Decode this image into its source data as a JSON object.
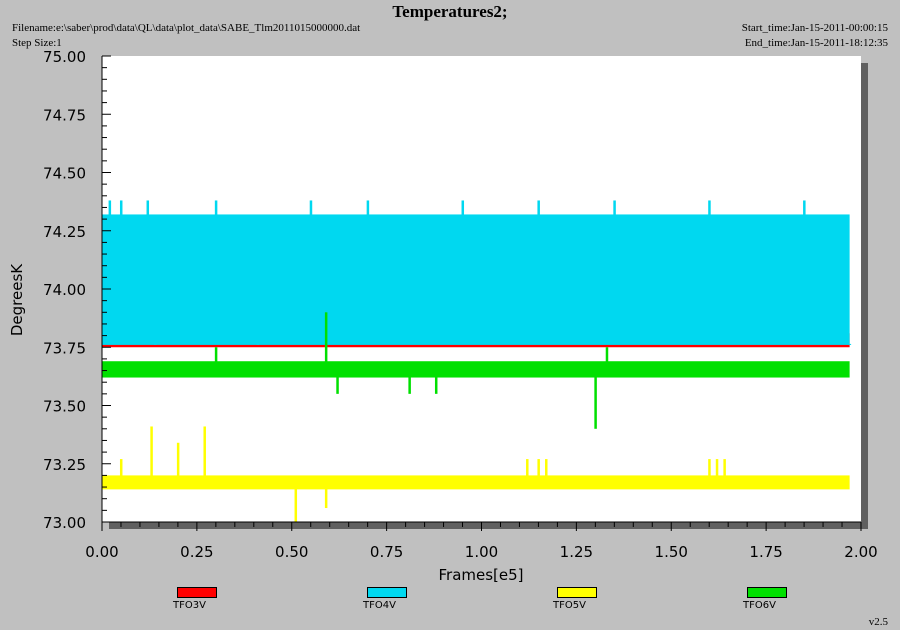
{
  "title": "Temperatures2;",
  "filename_text": "Filename:e:\\saber\\prod\\data\\QL\\data\\plot_data\\SABE_Tlm2011015000000.dat",
  "step_size_text": "Step Size:1",
  "start_time_text": "Start_time:Jan-15-2011-00:00:15",
  "end_time_text": "End_time:Jan-15-2011-18:12:35",
  "version": "v2.5",
  "chart_data": {
    "type": "line",
    "xlabel": "Frames[e5]",
    "ylabel": "DegreesK",
    "xlim": [
      0.0,
      2.0
    ],
    "ylim": [
      73.0,
      75.0
    ],
    "x_ticks": [
      "0.00",
      "0.25",
      "0.50",
      "0.75",
      "1.00",
      "1.25",
      "1.50",
      "1.75",
      "2.00"
    ],
    "y_ticks": [
      "73.00",
      "73.25",
      "73.50",
      "73.75",
      "74.00",
      "74.25",
      "74.50",
      "74.75",
      "75.00"
    ],
    "legend_position": "bottom",
    "series": [
      {
        "name": "TFO3V",
        "color": "#ff0000",
        "x_range": [
          0.0,
          1.97
        ],
        "band": [
          73.75,
          73.81
        ],
        "spikes_up": [
          [
            0.02,
            73.82
          ],
          [
            0.07,
            73.82
          ],
          [
            0.28,
            73.82
          ],
          [
            0.5,
            73.8
          ],
          [
            0.55,
            73.82
          ],
          [
            0.63,
            73.82
          ],
          [
            0.66,
            73.82
          ],
          [
            0.88,
            73.82
          ],
          [
            0.92,
            73.82
          ],
          [
            1.16,
            73.82
          ],
          [
            1.17,
            73.82
          ],
          [
            1.46,
            73.82
          ],
          [
            1.48,
            73.82
          ],
          [
            1.6,
            73.82
          ]
        ]
      },
      {
        "name": "TFO4V",
        "color": "#00d8f0",
        "x_range": [
          0.0,
          1.97
        ],
        "band": [
          73.76,
          74.32
        ],
        "spikes_up": [
          [
            0.02,
            74.38
          ],
          [
            0.05,
            74.38
          ],
          [
            0.12,
            74.38
          ],
          [
            0.3,
            74.38
          ],
          [
            0.55,
            74.38
          ],
          [
            0.7,
            74.38
          ],
          [
            0.95,
            74.38
          ],
          [
            1.15,
            74.38
          ],
          [
            1.35,
            74.38
          ],
          [
            1.6,
            74.38
          ],
          [
            1.85,
            74.38
          ]
        ],
        "spikes_down": [
          [
            0.14,
            74.18
          ],
          [
            0.41,
            74.19
          ],
          [
            1.97,
            73.97
          ]
        ]
      },
      {
        "name": "TFO5V",
        "color": "#ffff00",
        "x_range": [
          0.0,
          1.97
        ],
        "band": [
          73.14,
          73.2
        ],
        "spikes_up": [
          [
            0.05,
            73.27
          ],
          [
            0.13,
            73.41
          ],
          [
            0.2,
            73.34
          ],
          [
            0.27,
            73.41
          ],
          [
            1.12,
            73.27
          ],
          [
            1.15,
            73.27
          ],
          [
            1.17,
            73.27
          ],
          [
            1.6,
            73.27
          ],
          [
            1.62,
            73.27
          ],
          [
            1.64,
            73.27
          ]
        ],
        "spikes_down": [
          [
            0.51,
            73.0
          ],
          [
            0.59,
            73.06
          ]
        ]
      },
      {
        "name": "TFO6V",
        "color": "#00e000",
        "x_range": [
          0.0,
          1.97
        ],
        "band": [
          73.62,
          73.69
        ],
        "spikes_up": [
          [
            0.3,
            73.75
          ],
          [
            0.59,
            73.9
          ],
          [
            1.33,
            73.75
          ]
        ],
        "spikes_down": [
          [
            0.62,
            73.55
          ],
          [
            0.81,
            73.55
          ],
          [
            0.88,
            73.55
          ],
          [
            1.3,
            73.4
          ]
        ]
      }
    ]
  }
}
